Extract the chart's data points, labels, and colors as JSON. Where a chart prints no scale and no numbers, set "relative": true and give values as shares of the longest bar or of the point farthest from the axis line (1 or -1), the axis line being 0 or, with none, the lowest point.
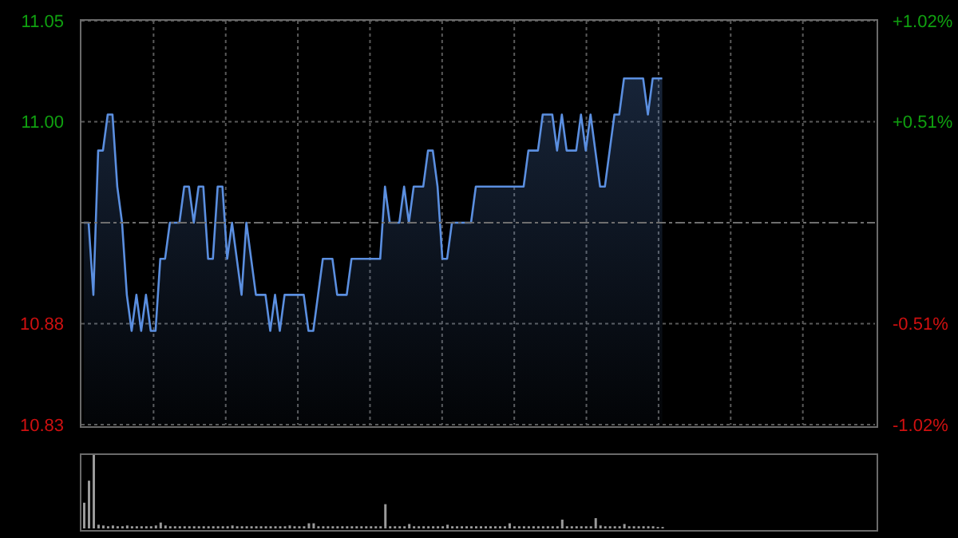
{
  "chart_data": [
    {
      "type": "area",
      "categories": [
        null,
        null,
        null,
        null,
        null,
        null,
        null,
        null,
        null,
        null,
        null,
        null,
        null,
        null,
        null,
        null,
        null,
        null,
        null,
        null,
        null,
        null,
        null,
        null,
        null,
        null,
        null,
        null,
        null,
        null,
        null,
        null,
        null,
        null,
        null,
        null,
        null,
        null,
        null,
        null,
        null,
        null,
        null,
        null,
        null,
        null,
        null,
        null,
        null,
        null,
        null,
        null,
        null,
        null,
        null,
        null,
        null,
        null,
        null,
        null,
        null,
        null,
        null,
        null,
        null,
        null,
        null,
        null,
        null,
        null,
        null,
        null,
        null,
        null,
        null,
        null,
        null,
        null,
        null,
        null,
        null,
        null,
        null,
        null,
        null,
        null,
        null,
        null,
        null,
        null,
        null,
        null,
        null,
        null,
        null,
        null,
        null,
        null,
        null,
        null,
        null,
        null,
        null,
        null,
        null,
        null,
        null,
        null,
        null,
        null,
        null,
        null,
        null,
        null,
        null,
        null,
        null,
        null,
        null,
        null,
        null,
        null
      ],
      "series": [
        {
          "color": "#5b8fe0",
          "values": [
            10.94,
            10.94,
            10.9,
            10.98,
            10.98,
            11.0,
            11.0,
            10.96,
            10.94,
            10.9,
            10.88,
            10.9,
            10.88,
            10.9,
            10.88,
            10.88,
            10.92,
            10.92,
            10.94,
            10.94,
            10.94,
            10.96,
            10.96,
            10.94,
            10.96,
            10.96,
            10.92,
            10.92,
            10.96,
            10.96,
            10.92,
            10.94,
            10.92,
            10.9,
            10.94,
            10.92,
            10.9,
            10.9,
            10.9,
            10.88,
            10.9,
            10.88,
            10.9,
            10.9,
            10.9,
            10.9,
            10.9,
            10.88,
            10.88,
            10.9,
            10.92,
            10.92,
            10.92,
            10.9,
            10.9,
            10.9,
            10.92,
            10.92,
            10.92,
            10.92,
            10.92,
            10.92,
            10.92,
            10.96,
            10.94,
            10.94,
            10.94,
            10.96,
            10.94,
            10.96,
            10.96,
            10.96,
            10.98,
            10.98,
            10.96,
            10.92,
            10.92,
            10.94,
            10.94,
            10.94,
            10.94,
            10.94,
            10.96,
            10.96,
            10.96,
            10.96,
            10.96,
            10.96,
            10.96,
            10.96,
            10.96,
            10.96,
            10.96,
            10.98,
            10.98,
            10.98,
            11.0,
            11.0,
            11.0,
            10.98,
            11.0,
            10.98,
            10.98,
            10.98,
            11.0,
            10.98,
            11.0,
            10.98,
            10.96,
            10.96,
            10.98,
            11.0,
            11.0,
            11.02,
            11.02,
            11.02,
            11.02,
            11.02,
            11.0,
            11.02,
            11.02,
            11.02
          ]
        }
      ],
      "ylim": [
        10.828,
        11.052
      ],
      "yticks": [
        {
          "value": 10.828,
          "label": "10.83"
        },
        {
          "value": 10.884,
          "label": "10.88"
        },
        {
          "value": 10.996,
          "label": "11.00"
        },
        {
          "value": 11.052,
          "label": "11.05"
        }
      ],
      "y2lim": [
        -1.02,
        1.02
      ],
      "y2ticks": [
        {
          "value": -1.02,
          "label": "-1.02%"
        },
        {
          "value": -0.51,
          "label": "-0.51%"
        },
        {
          "value": 0.51,
          "label": "+0.51%"
        },
        {
          "value": 1.02,
          "label": "+1.02%"
        }
      ],
      "ref_lines": [
        {
          "axis": "y",
          "value": 10.94,
          "color": "#6e6e6e",
          "line_style": "dashed"
        }
      ],
      "grid": true,
      "tick_labels": "y"
    },
    {
      "type": "bar",
      "relative": true,
      "tick_labels": false,
      "categories": [
        null,
        null,
        null,
        null,
        null,
        null,
        null,
        null,
        null,
        null,
        null,
        null,
        null,
        null,
        null,
        null,
        null,
        null,
        null,
        null,
        null,
        null,
        null,
        null,
        null,
        null,
        null,
        null,
        null,
        null,
        null,
        null,
        null,
        null,
        null,
        null,
        null,
        null,
        null,
        null,
        null,
        null,
        null,
        null,
        null,
        null,
        null,
        null,
        null,
        null,
        null,
        null,
        null,
        null,
        null,
        null,
        null,
        null,
        null,
        null,
        null,
        null,
        null,
        null,
        null,
        null,
        null,
        null,
        null,
        null,
        null,
        null,
        null,
        null,
        null,
        null,
        null,
        null,
        null,
        null,
        null,
        null,
        null,
        null,
        null,
        null,
        null,
        null,
        null,
        null,
        null,
        null,
        null,
        null,
        null,
        null,
        null,
        null,
        null,
        null,
        null,
        null,
        null,
        null,
        null,
        null,
        null,
        null,
        null,
        null,
        null,
        null,
        null,
        null,
        null,
        null,
        null,
        null,
        null,
        null,
        null,
        null
      ],
      "series": [
        {
          "color": "#9a9a9a",
          "values": [
            0.35,
            0.65,
            1,
            0.05,
            0.04,
            0.03,
            0.04,
            0.03,
            0.03,
            0.04,
            0.03,
            0.03,
            0.03,
            0.03,
            0.03,
            0.04,
            0.08,
            0.04,
            0.03,
            0.03,
            0.03,
            0.03,
            0.03,
            0.03,
            0.03,
            0.03,
            0.03,
            0.03,
            0.03,
            0.03,
            0.03,
            0.04,
            0.03,
            0.03,
            0.03,
            0.03,
            0.03,
            0.03,
            0.03,
            0.03,
            0.03,
            0.03,
            0.03,
            0.04,
            0.03,
            0.03,
            0.03,
            0.07,
            0.07,
            0.03,
            0.03,
            0.03,
            0.03,
            0.03,
            0.03,
            0.03,
            0.03,
            0.03,
            0.03,
            0.03,
            0.03,
            0.03,
            0.03,
            0.33,
            0.03,
            0.03,
            0.03,
            0.03,
            0.06,
            0.03,
            0.03,
            0.03,
            0.03,
            0.03,
            0.03,
            0.03,
            0.05,
            0.03,
            0.03,
            0.03,
            0.03,
            0.03,
            0.03,
            0.03,
            0.03,
            0.03,
            0.03,
            0.03,
            0.03,
            0.07,
            0.03,
            0.03,
            0.03,
            0.03,
            0.03,
            0.03,
            0.03,
            0.03,
            0.03,
            0.03,
            0.12,
            0.03,
            0.03,
            0.03,
            0.03,
            0.03,
            0.03,
            0.14,
            0.04,
            0.03,
            0.03,
            0.03,
            0.03,
            0.06,
            0.03,
            0.03,
            0.03,
            0.03,
            0.03,
            0.03,
            0.02,
            0.02
          ]
        }
      ]
    }
  ]
}
